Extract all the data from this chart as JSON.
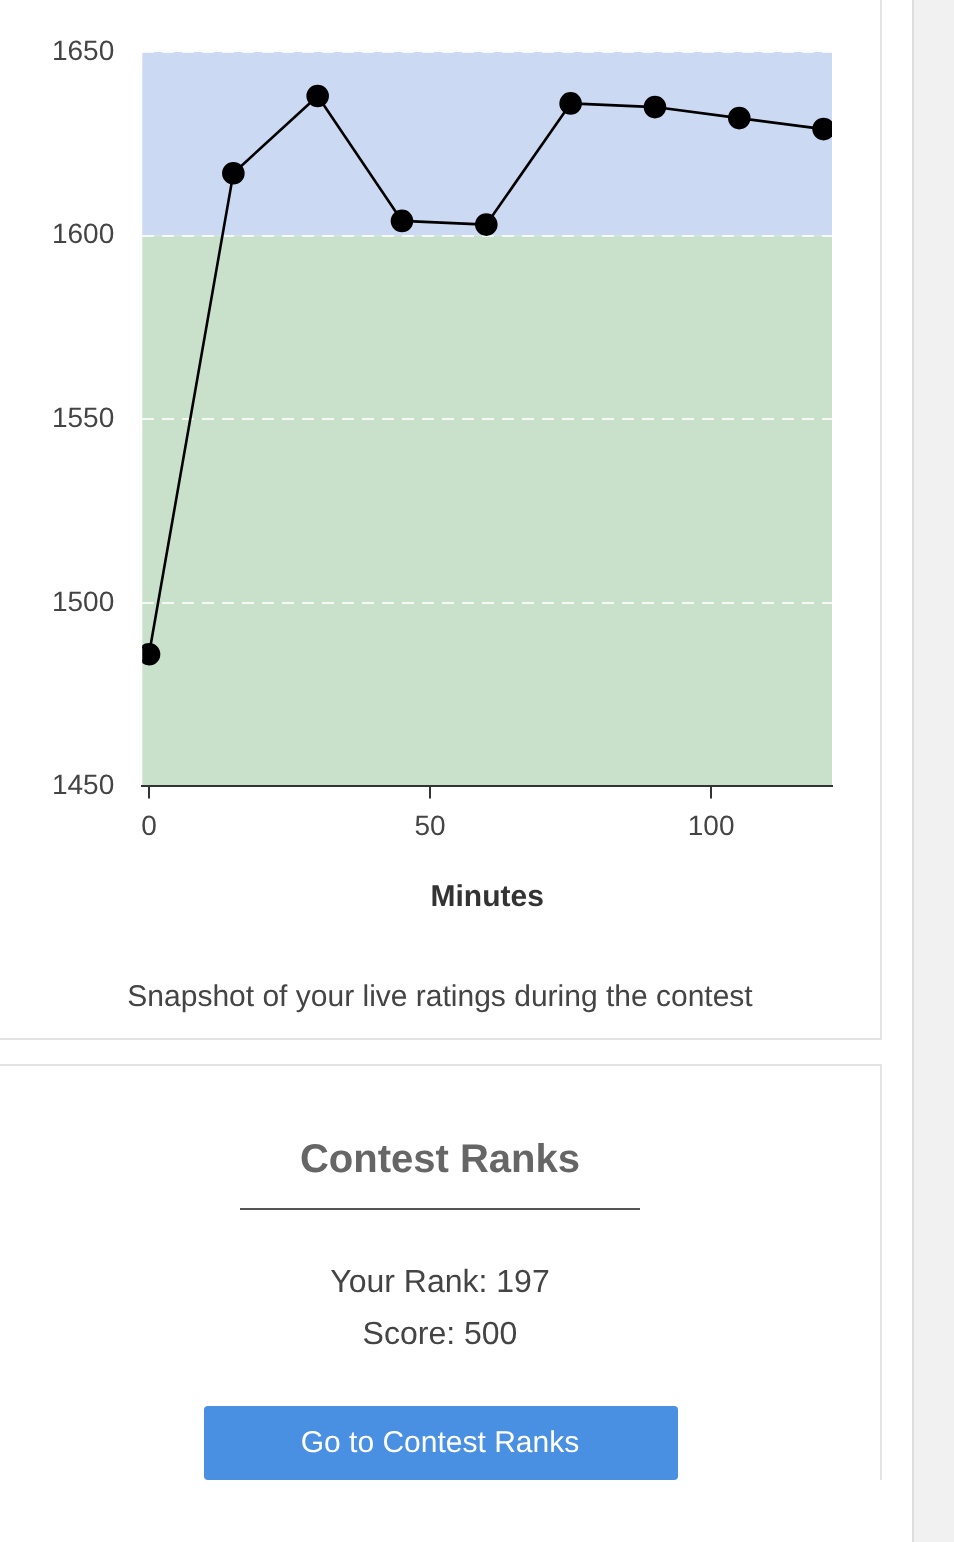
{
  "chart_data": {
    "type": "line",
    "xlabel": "Minutes",
    "x": [
      0,
      15,
      30,
      45,
      60,
      75,
      90,
      105,
      120
    ],
    "series": [
      {
        "color": "#000000",
        "values": [
          1486,
          1617,
          1638,
          1604,
          1603,
          1636,
          1635,
          1632,
          1629
        ]
      }
    ],
    "xlim": [
      -1.2,
      121.5
    ],
    "xticks": [
      0,
      50,
      100
    ],
    "ylim": [
      1450,
      1650
    ],
    "yticks": [
      1450,
      1500,
      1550,
      1600,
      1650
    ],
    "bands": [
      {
        "axis": "y",
        "from": 1450,
        "to": 1600,
        "color": "#c9e0ca"
      },
      {
        "axis": "y",
        "from": 1600,
        "to": 1650,
        "color": "#ccd9f2"
      }
    ],
    "grid": "y",
    "legend": false,
    "marker": "circle",
    "line_style": "solid",
    "annotations": [
      "Snapshot of your live ratings during the contest",
      "Contest Ranks",
      "Your Rank: 197",
      "Score: 500",
      "Go to Contest Ranks"
    ]
  }
}
